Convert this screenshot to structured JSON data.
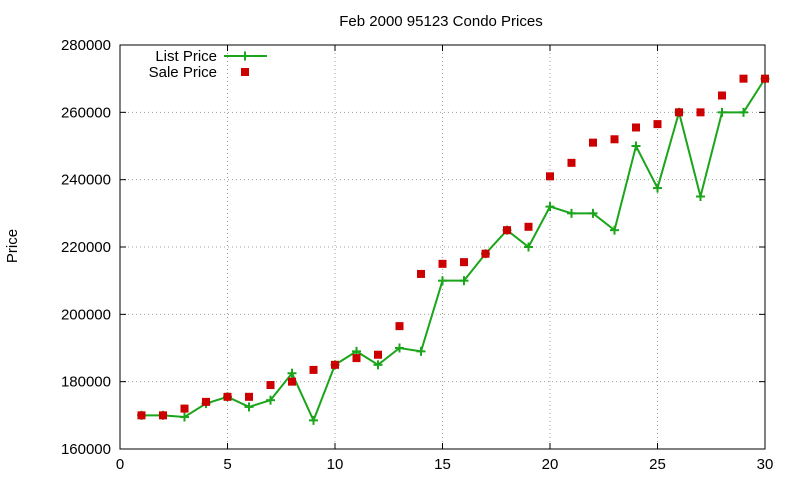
{
  "chart_data": {
    "type": "line",
    "title": "Feb 2000 95123 Condo Prices",
    "xlabel": "",
    "ylabel": "Price",
    "xlim": [
      0,
      30
    ],
    "ylim": [
      160000,
      280000
    ],
    "xticks": [
      0,
      5,
      10,
      15,
      20,
      25,
      30
    ],
    "yticks": [
      160000,
      180000,
      200000,
      220000,
      240000,
      260000,
      280000
    ],
    "grid": true,
    "legend_position": "top-left",
    "series": [
      {
        "name": "List Price",
        "type": "line",
        "marker": "plus",
        "color": "#1aa51a",
        "x": [
          1,
          2,
          3,
          4,
          5,
          6,
          7,
          8,
          9,
          10,
          11,
          12,
          13,
          14,
          15,
          16,
          17,
          18,
          19,
          20,
          21,
          22,
          23,
          24,
          25,
          26,
          27,
          28,
          29,
          30
        ],
        "y": [
          170000,
          170000,
          169500,
          173500,
          175500,
          172500,
          174500,
          182500,
          168500,
          185000,
          189000,
          185000,
          190000,
          189000,
          210000,
          210000,
          218000,
          225000,
          220000,
          232000,
          230000,
          230000,
          225000,
          250000,
          237500,
          260000,
          235000,
          260000,
          260000,
          270000
        ]
      },
      {
        "name": "Sale Price",
        "type": "scatter",
        "marker": "square",
        "color": "#cc0000",
        "x": [
          1,
          2,
          3,
          4,
          5,
          6,
          7,
          8,
          9,
          10,
          11,
          12,
          13,
          14,
          15,
          16,
          17,
          18,
          19,
          20,
          21,
          22,
          23,
          24,
          25,
          26,
          27,
          28,
          29,
          30
        ],
        "y": [
          170000,
          170000,
          172000,
          174000,
          175500,
          175500,
          179000,
          180000,
          183500,
          185000,
          187000,
          188000,
          196500,
          212000,
          215000,
          215500,
          218000,
          225000,
          226000,
          241000,
          245000,
          251000,
          252000,
          255500,
          256500,
          260000,
          260000,
          265000,
          270000,
          270000
        ]
      }
    ]
  }
}
